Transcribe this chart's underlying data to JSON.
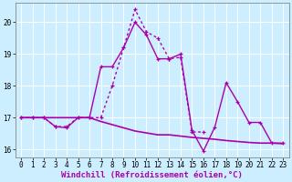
{
  "x": [
    0,
    1,
    2,
    3,
    4,
    5,
    6,
    7,
    8,
    9,
    10,
    11,
    12,
    13,
    14,
    15,
    16,
    17,
    18,
    19,
    20,
    21,
    22,
    23
  ],
  "line1_y": [
    17.0,
    17.0,
    17.0,
    17.0,
    17.0,
    17.0,
    17.0,
    16.88,
    16.78,
    16.68,
    16.58,
    16.52,
    16.46,
    16.46,
    16.42,
    16.38,
    16.35,
    16.32,
    16.28,
    16.25,
    16.22,
    16.2,
    16.2,
    16.18
  ],
  "line2_y": [
    17.0,
    17.0,
    17.0,
    16.72,
    16.68,
    17.0,
    17.0,
    18.6,
    18.6,
    19.2,
    20.0,
    19.6,
    18.85,
    18.85,
    19.0,
    16.6,
    15.95,
    16.7,
    18.1,
    17.5,
    16.85,
    16.85,
    16.2,
    16.2
  ],
  "line3_y": [
    17.0,
    17.0,
    17.0,
    16.72,
    16.72,
    17.0,
    17.0,
    17.0,
    18.0,
    19.2,
    20.4,
    19.7,
    19.5,
    18.85,
    18.9,
    16.55,
    16.55,
    null,
    null,
    null,
    null,
    null,
    null,
    null
  ],
  "bg_color": "#cceeff",
  "line_color": "#aa00aa",
  "xlabel": "Windchill (Refroidissement éolien,°C)",
  "ylim_min": 15.75,
  "ylim_max": 20.6,
  "xlim_min": -0.5,
  "xlim_max": 23.5,
  "yticks": [
    16,
    17,
    18,
    19,
    20
  ],
  "xticks": [
    0,
    1,
    2,
    3,
    4,
    5,
    6,
    7,
    8,
    9,
    10,
    11,
    12,
    13,
    14,
    15,
    16,
    17,
    18,
    19,
    20,
    21,
    22,
    23
  ],
  "grid_color": "#ffffff",
  "tick_fontsize": 5.5,
  "xlabel_fontsize": 6.5
}
